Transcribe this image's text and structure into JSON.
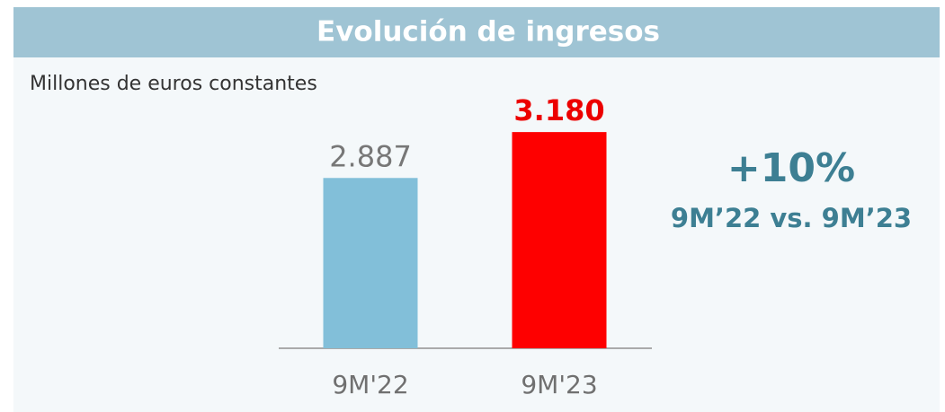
{
  "chart_data": {
    "type": "bar",
    "title": "Evolución de ingresos",
    "subtitle": "Millones de euros constantes",
    "annotations": [
      "+10%",
      "9M’22 vs. 9M’23"
    ],
    "categories": [
      "9M'22",
      "9M'23"
    ],
    "values": [
      2887,
      3180
    ],
    "value_labels": [
      "2.887",
      "3.180"
    ],
    "colors": [
      "#82bfd9",
      "#fe0000"
    ],
    "ylim": [
      1800,
      3450
    ]
  }
}
